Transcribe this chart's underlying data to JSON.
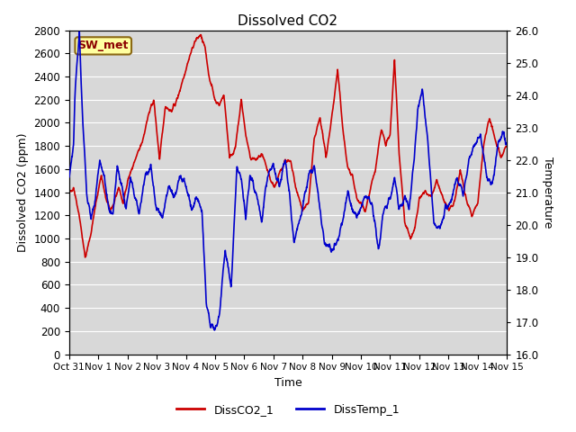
{
  "title": "Dissolved CO2",
  "xlabel": "Time",
  "ylabel_left": "Dissolved CO2 (ppm)",
  "ylabel_right": "Temperature",
  "ylim_left": [
    0,
    2800
  ],
  "ylim_right": [
    16.0,
    26.0
  ],
  "yticks_left": [
    0,
    200,
    400,
    600,
    800,
    1000,
    1200,
    1400,
    1600,
    1800,
    2000,
    2200,
    2400,
    2600,
    2800
  ],
  "yticks_right": [
    16.0,
    17.0,
    18.0,
    19.0,
    20.0,
    21.0,
    22.0,
    23.0,
    24.0,
    25.0,
    26.0
  ],
  "xtick_labels": [
    "Oct 31",
    "Nov 1",
    "Nov 2",
    "Nov 3",
    "Nov 4",
    "Nov 5",
    "Nov 6",
    "Nov 7",
    "Nov 8",
    "Nov 9",
    "Nov 10",
    "Nov 11",
    "Nov 12",
    "Nov 13",
    "Nov 14",
    "Nov 15"
  ],
  "co2_color": "#cc0000",
  "temp_color": "#0000cc",
  "plot_bg_color": "#d8d8d8",
  "fig_bg_color": "#ffffff",
  "legend_label_co2": "DissCO2_1",
  "legend_label_temp": "DissTemp_1",
  "station_label": "SW_met",
  "line_width": 1.2,
  "title_fontsize": 11,
  "axis_fontsize": 9,
  "tick_fontsize": 8.5
}
